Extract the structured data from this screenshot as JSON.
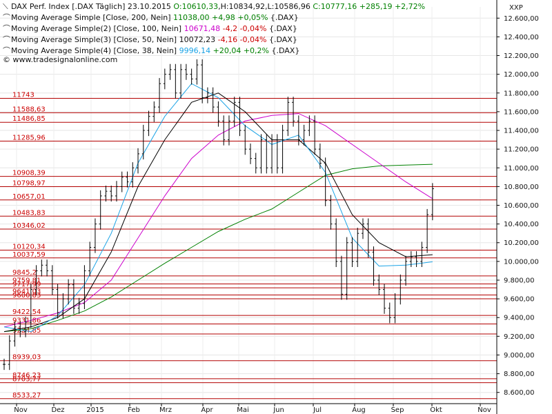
{
  "chart_data": {
    "type": "line",
    "header": {
      "title": "DAX Perf. Index [.DAX  Täglich]",
      "date": "23.10.2015",
      "open": "O:10610,33",
      "high": "H:10834,92",
      "low": "L:10586,96",
      "close": "C:10777,16",
      "change": "+285,19",
      "change_pct": "+2,72%"
    },
    "legend": [
      {
        "name": "Moving Average Simple [Close, 200, Nein]",
        "value": "11038,00",
        "change": "+4,98",
        "change_pct": "+0,05%",
        "suffix": "{.DAX}",
        "color": "#008000"
      },
      {
        "name": "Moving Average Simple(2) [Close, 100, Nein]",
        "value": "10671,48",
        "change": "-4,2",
        "change_pct": "-0,04%",
        "suffix": "{.DAX}",
        "color": "#cc00cc"
      },
      {
        "name": "Moving Average Simple(3) [Close, 50, Nein]",
        "value": "10072,23",
        "change": "-4,16",
        "change_pct": "-0,04%",
        "suffix": "{.DAX}",
        "color": "#000000"
      },
      {
        "name": "Moving Average Simple(4) [Close, 38, Nein]",
        "value": "9996,14",
        "change": "+20,04",
        "change_pct": "+0,2%",
        "suffix": "{.DAX}",
        "color": "#1aa3e6"
      }
    ],
    "watermark": "© www.tradesignalonline.com",
    "y_unit_label": "XXP",
    "ylim": [
      8480,
      12720
    ],
    "y_ticks": [
      "12.600,00",
      "12.400,00",
      "12.200,00",
      "12.000,00",
      "11.800,00",
      "11.600,00",
      "11.400,00",
      "11.200,00",
      "11.000,00",
      "10.800,00",
      "10.600,00",
      "10.400,00",
      "10.200,00",
      "10.000,00",
      "9.800,00",
      "9.600,00",
      "9.400,00",
      "9.200,00",
      "9.000,00",
      "8.800,00",
      "8.600,00"
    ],
    "y_tick_values": [
      12600,
      12400,
      12200,
      12000,
      11800,
      11600,
      11400,
      11200,
      11000,
      10800,
      10600,
      10400,
      10200,
      10000,
      9800,
      9600,
      9400,
      9200,
      9000,
      8800,
      8600
    ],
    "x_labels": [
      "Nov",
      "Dez",
      "2015",
      "Feb",
      "Mrz",
      "Apr",
      "Mai",
      "Jun",
      "Jul",
      "Aug",
      "Sep",
      "Okt",
      "Nov"
    ],
    "levels": [
      {
        "label": "11743",
        "value": 11743
      },
      {
        "label": "11588,63",
        "value": 11588.63
      },
      {
        "label": "11486,85",
        "value": 11486.85
      },
      {
        "label": "11285,96",
        "value": 11285.96
      },
      {
        "label": "10908,39",
        "value": 10908.39
      },
      {
        "label": "10798,97",
        "value": 10798.97
      },
      {
        "label": "10657,01",
        "value": 10657.01
      },
      {
        "label": "10483,83",
        "value": 10483.83
      },
      {
        "label": "10346,02",
        "value": 10346.02
      },
      {
        "label": "10120,34",
        "value": 10120.34
      },
      {
        "label": "10037,59",
        "value": 10037.59
      },
      {
        "label": "9845,2",
        "value": 9845.2
      },
      {
        "label": "9759,81",
        "value": 9759.81
      },
      {
        "label": "9717,99",
        "value": 9717.99
      },
      {
        "label": "9641,03",
        "value": 9641.03
      },
      {
        "label": "9600,83",
        "value": 9600.83
      },
      {
        "label": "9422,54",
        "value": 9422.54
      },
      {
        "label": "9331,86",
        "value": 9331.86
      },
      {
        "label": "9224,85",
        "value": 9224.85
      },
      {
        "label": "8939,03",
        "value": 8939.03
      },
      {
        "label": "8746,23",
        "value": 8746.23
      },
      {
        "label": "8703,77",
        "value": 8703.77
      },
      {
        "label": "8533,27",
        "value": 8533.27
      }
    ],
    "price_close": [
      [
        0,
        8900
      ],
      [
        1,
        9150
      ],
      [
        2,
        9300
      ],
      [
        3,
        9250
      ],
      [
        4,
        9350
      ],
      [
        5,
        9700
      ],
      [
        6,
        9900
      ],
      [
        7,
        9960
      ],
      [
        8,
        9900
      ],
      [
        9,
        9700
      ],
      [
        10,
        9450
      ],
      [
        11,
        9600
      ],
      [
        12,
        9750
      ],
      [
        13,
        9500
      ],
      [
        14,
        9550
      ],
      [
        15,
        9900
      ],
      [
        16,
        10150
      ],
      [
        17,
        10400
      ],
      [
        18,
        10700
      ],
      [
        19,
        10750
      ],
      [
        20,
        10700
      ],
      [
        21,
        10800
      ],
      [
        22,
        10900
      ],
      [
        23,
        10850
      ],
      [
        24,
        11000
      ],
      [
        25,
        11150
      ],
      [
        26,
        11400
      ],
      [
        27,
        11550
      ],
      [
        28,
        11650
      ],
      [
        29,
        11900
      ],
      [
        30,
        12000
      ],
      [
        31,
        12050
      ],
      [
        32,
        11800
      ],
      [
        33,
        12050
      ],
      [
        34,
        12000
      ],
      [
        35,
        11950
      ],
      [
        36,
        12100
      ],
      [
        37,
        11750
      ],
      [
        38,
        11800
      ],
      [
        39,
        11650
      ],
      [
        40,
        11500
      ],
      [
        41,
        11300
      ],
      [
        42,
        11500
      ],
      [
        43,
        11700
      ],
      [
        44,
        11400
      ],
      [
        45,
        11200
      ],
      [
        46,
        11100
      ],
      [
        47,
        11000
      ],
      [
        48,
        11300
      ],
      [
        49,
        11000
      ],
      [
        50,
        11300
      ],
      [
        51,
        11000
      ],
      [
        52,
        11400
      ],
      [
        53,
        11700
      ],
      [
        54,
        11500
      ],
      [
        55,
        11300
      ],
      [
        56,
        11400
      ],
      [
        57,
        11500
      ],
      [
        58,
        11200
      ],
      [
        59,
        11050
      ],
      [
        60,
        10650
      ],
      [
        61,
        10400
      ],
      [
        62,
        10000
      ],
      [
        63,
        9650
      ],
      [
        64,
        10200
      ],
      [
        65,
        10000
      ],
      [
        66,
        10300
      ],
      [
        67,
        10400
      ],
      [
        68,
        10100
      ],
      [
        69,
        9800
      ],
      [
        70,
        9700
      ],
      [
        71,
        9500
      ],
      [
        72,
        9400
      ],
      [
        73,
        9600
      ],
      [
        74,
        9800
      ],
      [
        75,
        10000
      ],
      [
        76,
        10050
      ],
      [
        77,
        10000
      ],
      [
        78,
        10150
      ],
      [
        79,
        10500
      ],
      [
        80,
        10777
      ]
    ],
    "ma200": [
      [
        0,
        9250
      ],
      [
        5,
        9280
      ],
      [
        10,
        9370
      ],
      [
        15,
        9470
      ],
      [
        20,
        9620
      ],
      [
        25,
        9800
      ],
      [
        30,
        9980
      ],
      [
        35,
        10150
      ],
      [
        40,
        10320
      ],
      [
        45,
        10450
      ],
      [
        50,
        10560
      ],
      [
        55,
        10740
      ],
      [
        60,
        10920
      ],
      [
        65,
        10990
      ],
      [
        70,
        11020
      ],
      [
        75,
        11030
      ],
      [
        80,
        11038
      ]
    ],
    "ma100": [
      [
        0,
        9300
      ],
      [
        5,
        9370
      ],
      [
        10,
        9450
      ],
      [
        15,
        9560
      ],
      [
        20,
        9800
      ],
      [
        25,
        10250
      ],
      [
        30,
        10700
      ],
      [
        35,
        11100
      ],
      [
        40,
        11350
      ],
      [
        45,
        11500
      ],
      [
        50,
        11560
      ],
      [
        55,
        11580
      ],
      [
        60,
        11450
      ],
      [
        65,
        11250
      ],
      [
        70,
        11050
      ],
      [
        75,
        10850
      ],
      [
        80,
        10671
      ]
    ],
    "ma50": [
      [
        0,
        9250
      ],
      [
        5,
        9300
      ],
      [
        10,
        9400
      ],
      [
        15,
        9600
      ],
      [
        20,
        10100
      ],
      [
        25,
        10800
      ],
      [
        30,
        11300
      ],
      [
        35,
        11700
      ],
      [
        40,
        11800
      ],
      [
        45,
        11600
      ],
      [
        50,
        11300
      ],
      [
        55,
        11300
      ],
      [
        60,
        11050
      ],
      [
        65,
        10500
      ],
      [
        70,
        10200
      ],
      [
        75,
        10050
      ],
      [
        80,
        10072
      ]
    ],
    "ma38": [
      [
        0,
        9300
      ],
      [
        5,
        9250
      ],
      [
        10,
        9420
      ],
      [
        15,
        9750
      ],
      [
        20,
        10300
      ],
      [
        25,
        11050
      ],
      [
        30,
        11550
      ],
      [
        35,
        11900
      ],
      [
        40,
        11750
      ],
      [
        45,
        11450
      ],
      [
        50,
        11250
      ],
      [
        55,
        11350
      ],
      [
        60,
        10950
      ],
      [
        65,
        10250
      ],
      [
        70,
        9950
      ],
      [
        75,
        9960
      ],
      [
        80,
        9996
      ]
    ]
  }
}
